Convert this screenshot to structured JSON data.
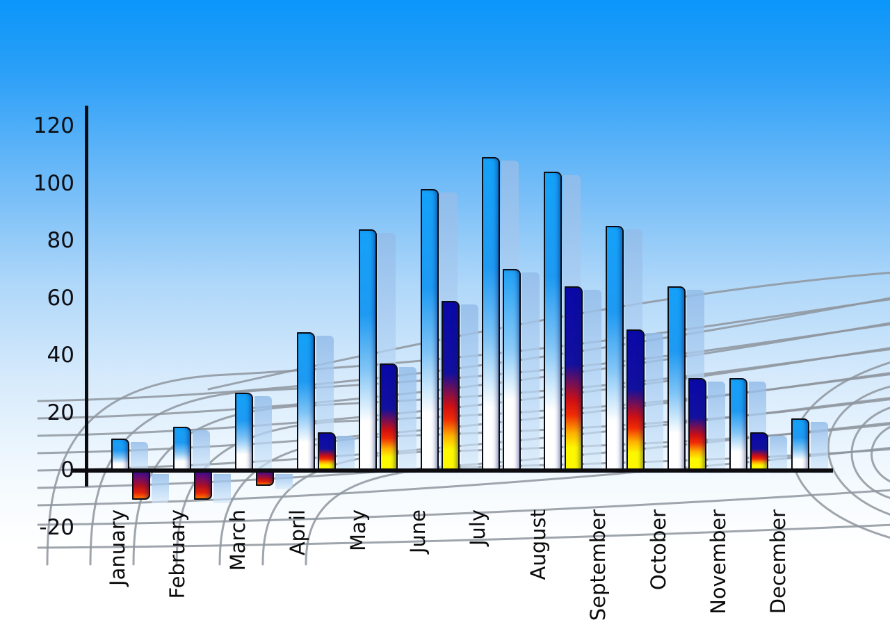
{
  "chart_data": {
    "type": "bar",
    "title": "",
    "xlabel": "",
    "ylabel": "",
    "legend": "none",
    "grid": "decorative curved gray perspective mesh over sky-blue gradient background",
    "ylim": [
      -20,
      120
    ],
    "yticks": [
      120,
      100,
      80,
      60,
      40,
      20,
      0,
      -20
    ],
    "ytick_labels": [
      "120",
      "100",
      "80",
      "60",
      "40",
      "20",
      "0",
      "-20"
    ],
    "categories": [
      "January",
      "February",
      "March",
      "April",
      "May",
      "June",
      "July",
      "August",
      "September",
      "October",
      "November",
      "December"
    ],
    "series": [
      {
        "name": "blue-gradient-bars",
        "values": [
          11,
          15,
          27,
          48,
          84,
          98,
          109,
          104,
          85,
          64,
          32,
          18
        ]
      },
      {
        "name": "heat-gradient-bars",
        "values": [
          -10,
          -10,
          -5,
          13,
          37,
          59,
          70,
          64,
          49,
          32,
          13,
          null
        ]
      }
    ],
    "series2_variants": [
      "hot",
      "hot",
      "hot",
      "hot",
      "hot",
      "hot",
      "blue",
      "hot",
      "hot",
      "hot",
      "hot",
      null
    ],
    "shadow_bars": "each bar has a pale translucent light-blue duplicate offset right and slightly down"
  },
  "colors": {
    "sky_top": "#0a96fa",
    "sky_bottom": "#ffffff",
    "bar_blue_top": "#1b9bf3",
    "bar_blue_bottom": "#ffffff",
    "heat_navy": "#0a08a8",
    "heat_red": "#cf1012",
    "heat_yellow": "#fdf800",
    "shadow_bar": "#b9d3f2",
    "axis": "#0b0b10",
    "grid_line": "#8e959d",
    "label_text": "#0b0b0b"
  }
}
